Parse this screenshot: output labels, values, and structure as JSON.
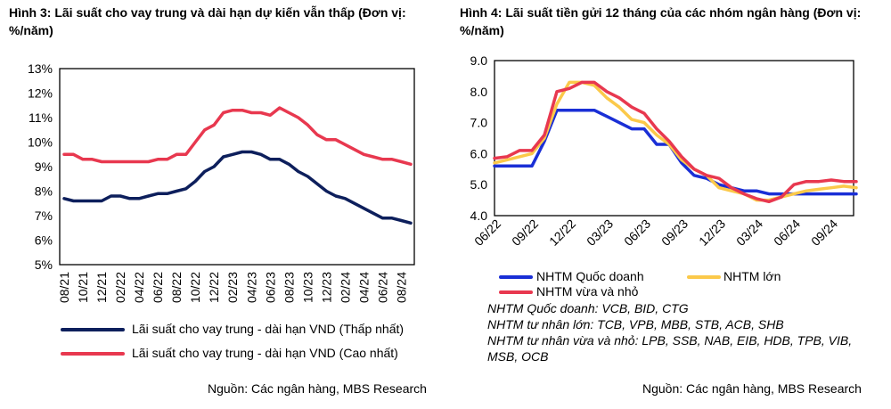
{
  "chart_data": [
    {
      "type": "line",
      "title": "Hình 3: Lãi suất cho vay trung và dài hạn dự kiến vẫn thấp (Đơn vị: %/năm)",
      "xlabel": "",
      "ylabel": "",
      "ylim": [
        5,
        13
      ],
      "y_ticks": [
        "13%",
        "12%",
        "11%",
        "10%",
        "9%",
        "8%",
        "7%",
        "6%",
        "5%"
      ],
      "x_tick_labels": [
        "08/21",
        "10/21",
        "12/21",
        "02/22",
        "04/22",
        "06/22",
        "08/22",
        "10/22",
        "12/22",
        "02/23",
        "04/23",
        "06/23",
        "08/23",
        "10/23",
        "12/23",
        "02/24",
        "04/24",
        "06/24",
        "08/24"
      ],
      "x": [
        "08/21",
        "09/21",
        "10/21",
        "11/21",
        "12/21",
        "01/22",
        "02/22",
        "03/22",
        "04/22",
        "05/22",
        "06/22",
        "07/22",
        "08/22",
        "09/22",
        "10/22",
        "11/22",
        "12/22",
        "01/23",
        "02/23",
        "03/23",
        "04/23",
        "05/23",
        "06/23",
        "07/23",
        "08/23",
        "09/23",
        "10/23",
        "11/23",
        "12/23",
        "01/24",
        "02/24",
        "03/24",
        "04/24",
        "05/24",
        "06/24",
        "07/24",
        "08/24",
        "09/24"
      ],
      "series": [
        {
          "name": "Lãi suất cho vay trung - dài hạn VND (Thấp nhất)",
          "color": "#0d1f5c",
          "values": [
            7.7,
            7.6,
            7.6,
            7.6,
            7.6,
            7.8,
            7.8,
            7.7,
            7.7,
            7.8,
            7.9,
            7.9,
            8.0,
            8.1,
            8.4,
            8.8,
            9.0,
            9.4,
            9.5,
            9.6,
            9.6,
            9.5,
            9.3,
            9.3,
            9.1,
            8.8,
            8.6,
            8.3,
            8.0,
            7.8,
            7.7,
            7.5,
            7.3,
            7.1,
            6.9,
            6.9,
            6.8,
            6.7
          ]
        },
        {
          "name": "Lãi suất cho vay trung - dài hạn VND (Cao nhất)",
          "color": "#e8384f",
          "values": [
            9.5,
            9.5,
            9.3,
            9.3,
            9.2,
            9.2,
            9.2,
            9.2,
            9.2,
            9.2,
            9.3,
            9.3,
            9.5,
            9.5,
            10.0,
            10.5,
            10.7,
            11.2,
            11.3,
            11.3,
            11.2,
            11.2,
            11.1,
            11.4,
            11.2,
            11.0,
            10.7,
            10.3,
            10.1,
            10.1,
            9.9,
            9.7,
            9.5,
            9.4,
            9.3,
            9.3,
            9.2,
            9.1
          ]
        }
      ],
      "legend": "bottom",
      "source": "Nguồn: Các ngân hàng, MBS Research"
    },
    {
      "type": "line",
      "title": "Hình 4: Lãi suất tiền gửi 12 tháng của các nhóm ngân hàng (Đơn vị: %/năm)",
      "xlabel": "",
      "ylabel": "",
      "ylim": [
        4.0,
        9.0
      ],
      "y_ticks": [
        "9.0",
        "8.0",
        "7.0",
        "6.0",
        "5.0",
        "4.0"
      ],
      "x_tick_labels": [
        "06/22",
        "09/22",
        "12/22",
        "03/23",
        "06/23",
        "09/23",
        "12/23",
        "03/24",
        "06/24",
        "09/24"
      ],
      "x": [
        "06/22",
        "07/22",
        "08/22",
        "09/22",
        "10/22",
        "11/22",
        "12/22",
        "01/23",
        "02/23",
        "03/23",
        "04/23",
        "05/23",
        "06/23",
        "07/23",
        "08/23",
        "09/23",
        "10/23",
        "11/23",
        "12/23",
        "01/24",
        "02/24",
        "03/24",
        "04/24",
        "05/24",
        "06/24",
        "07/24",
        "08/24",
        "09/24",
        "10/24",
        "11/24"
      ],
      "series": [
        {
          "name": "NHTM Quốc doanh",
          "color": "#1a2fd6",
          "values": [
            5.6,
            5.6,
            5.6,
            5.6,
            6.4,
            7.4,
            7.4,
            7.4,
            7.4,
            7.2,
            7.0,
            6.8,
            6.8,
            6.3,
            6.3,
            5.7,
            5.3,
            5.2,
            5.0,
            4.9,
            4.8,
            4.8,
            4.7,
            4.7,
            4.7,
            4.7,
            4.7,
            4.7,
            4.7,
            4.7
          ]
        },
        {
          "name": "NHTM lớn",
          "color": "#fbc94a",
          "values": [
            5.7,
            5.8,
            5.9,
            6.0,
            6.5,
            7.6,
            8.3,
            8.3,
            8.2,
            7.8,
            7.5,
            7.1,
            7.0,
            6.6,
            6.3,
            5.8,
            5.5,
            5.3,
            4.9,
            4.8,
            4.7,
            4.5,
            4.5,
            4.6,
            4.7,
            4.8,
            4.85,
            4.9,
            4.95,
            4.9
          ]
        },
        {
          "name": "NHTM vừa và nhỏ",
          "color": "#e8384f",
          "values": [
            5.85,
            5.9,
            6.1,
            6.1,
            6.6,
            8.0,
            8.1,
            8.3,
            8.3,
            8.0,
            7.8,
            7.5,
            7.3,
            6.8,
            6.4,
            5.9,
            5.5,
            5.3,
            5.2,
            4.9,
            4.7,
            4.55,
            4.45,
            4.6,
            5.0,
            5.1,
            5.1,
            5.15,
            5.1,
            5.1
          ]
        }
      ],
      "legend": "bottom",
      "notes": [
        "NHTM Quốc doanh: VCB, BID, CTG",
        "NHTM tư nhân lớn: TCB, VPB, MBB, STB, ACB, SHB",
        "NHTM tư nhân vừa và nhỏ: LPB, SSB, NAB, EIB, HDB, TPB, VIB, MSB, OCB"
      ],
      "source": "Nguồn: Các ngân hàng, MBS Research"
    }
  ]
}
